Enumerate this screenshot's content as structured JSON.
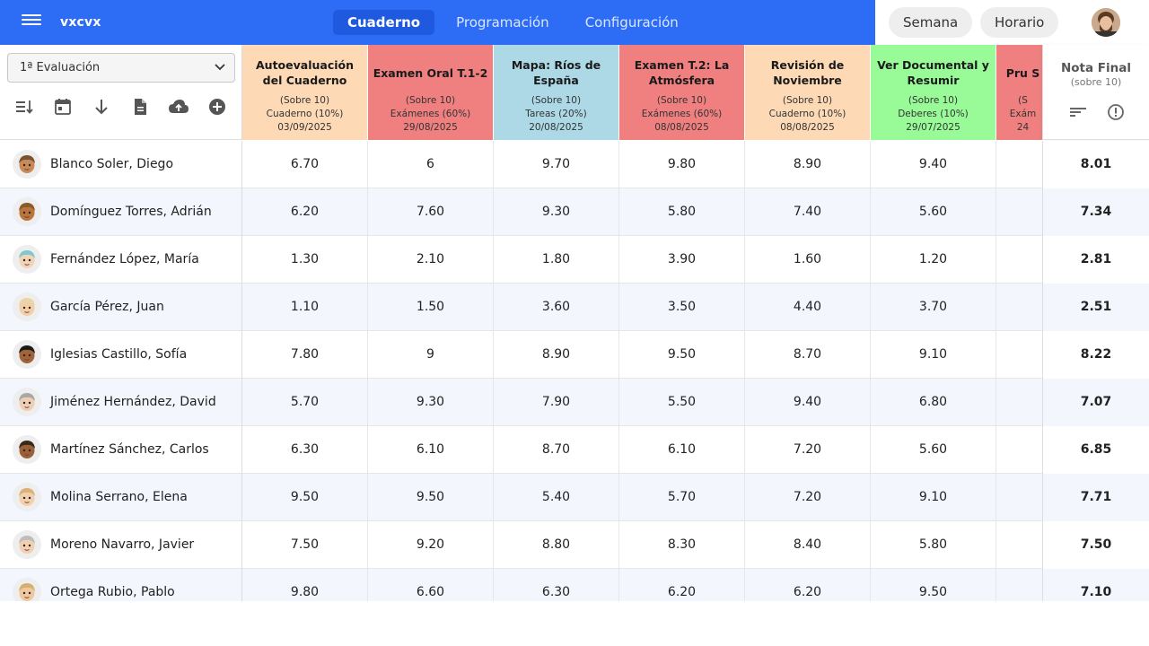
{
  "app": {
    "title": "vxcvx"
  },
  "nav": {
    "tabs": [
      "Cuaderno",
      "Programación",
      "Configuración"
    ],
    "active": 0
  },
  "top_right": {
    "week_label": "Semana",
    "schedule_label": "Horario"
  },
  "period_select": {
    "value": "1ª Evaluación"
  },
  "colors": {
    "primary": "#2d6df6",
    "cuaderno": "#fdd9b5",
    "examenes": "#f08080",
    "tareas": "#add8e6",
    "deberes": "#98fb98"
  },
  "columns": [
    {
      "title": "Autoevaluación del Cuaderno",
      "scale": "(Sobre 10)",
      "category": "Cuaderno (10%)",
      "date": "03/09/2025",
      "color": "#fdd9b5"
    },
    {
      "title": "Examen Oral T.1-2",
      "scale": "(Sobre 10)",
      "category": "Exámenes (60%)",
      "date": "29/08/2025",
      "color": "#f08080"
    },
    {
      "title": "Mapa: Ríos de España",
      "scale": "(Sobre 10)",
      "category": "Tareas (20%)",
      "date": "20/08/2025",
      "color": "#add8e6"
    },
    {
      "title": "Examen T.2: La Atmósfera",
      "scale": "(Sobre 10)",
      "category": "Exámenes (60%)",
      "date": "08/08/2025",
      "color": "#f08080"
    },
    {
      "title": "Revisión de Noviembre",
      "scale": "(Sobre 10)",
      "category": "Cuaderno (10%)",
      "date": "08/08/2025",
      "color": "#fdd9b5"
    },
    {
      "title": "Ver Documental y Resumir",
      "scale": "(Sobre 10)",
      "category": "Deberes (10%)",
      "date": "29/07/2025",
      "color": "#98fb98"
    },
    {
      "title": "Pru S",
      "scale": "(S",
      "category": "Exám",
      "date": "24",
      "color": "#f08080"
    }
  ],
  "final_column": {
    "title": "Nota Final",
    "subtitle": "(sobre 10)"
  },
  "students": [
    {
      "name": "Blanco Soler, Diego",
      "grades": [
        "6.70",
        "6",
        "9.70",
        "9.80",
        "8.90",
        "9.40",
        ""
      ],
      "final": "8.01",
      "hair": "#7a5230",
      "skin": "#c98a5a"
    },
    {
      "name": "Domínguez Torres, Adrián",
      "grades": [
        "6.20",
        "7.60",
        "9.30",
        "5.80",
        "7.40",
        "5.60",
        ""
      ],
      "final": "7.34",
      "hair": "#8b5a2b",
      "skin": "#b8763e"
    },
    {
      "name": "Fernández López, María",
      "grades": [
        "1.30",
        "2.10",
        "1.80",
        "3.90",
        "1.60",
        "1.20",
        ""
      ],
      "final": "2.81",
      "hair": "#7fc8cf",
      "skin": "#f2d3b6"
    },
    {
      "name": "García Pérez, Juan",
      "grades": [
        "1.10",
        "1.50",
        "3.60",
        "3.50",
        "4.40",
        "3.70",
        ""
      ],
      "final": "2.51",
      "hair": "#e8d6a8",
      "skin": "#f1cfa8"
    },
    {
      "name": "Iglesias Castillo, Sofía",
      "grades": [
        "7.80",
        "9",
        "8.90",
        "9.50",
        "8.70",
        "9.10",
        ""
      ],
      "final": "8.22",
      "hair": "#1a1a1a",
      "skin": "#a0643a"
    },
    {
      "name": "Jiménez Hernández, David",
      "grades": [
        "5.70",
        "9.30",
        "7.90",
        "5.50",
        "9.40",
        "6.80",
        ""
      ],
      "final": "7.07",
      "hair": "#a8a8a8",
      "skin": "#efcfb4"
    },
    {
      "name": "Martínez Sánchez, Carlos",
      "grades": [
        "6.30",
        "6.10",
        "8.70",
        "6.10",
        "7.20",
        "5.60",
        ""
      ],
      "final": "6.85",
      "hair": "#3a2a1a",
      "skin": "#9a6038"
    },
    {
      "name": "Molina Serrano, Elena",
      "grades": [
        "9.50",
        "9.50",
        "5.40",
        "5.70",
        "7.20",
        "9.10",
        ""
      ],
      "final": "7.71",
      "hair": "#d9b27a",
      "skin": "#f2d0ae"
    },
    {
      "name": "Moreno Navarro, Javier",
      "grades": [
        "7.50",
        "9.20",
        "8.80",
        "8.30",
        "8.40",
        "5.80",
        ""
      ],
      "final": "7.50",
      "hair": "#bdbdbd",
      "skin": "#f0cfb2"
    },
    {
      "name": "Ortega Rubio, Pablo",
      "grades": [
        "9.80",
        "6.60",
        "6.30",
        "6.20",
        "6.20",
        "9.50",
        ""
      ],
      "final": "7.10",
      "hair": "#d4b070",
      "skin": "#efc8a0"
    }
  ]
}
